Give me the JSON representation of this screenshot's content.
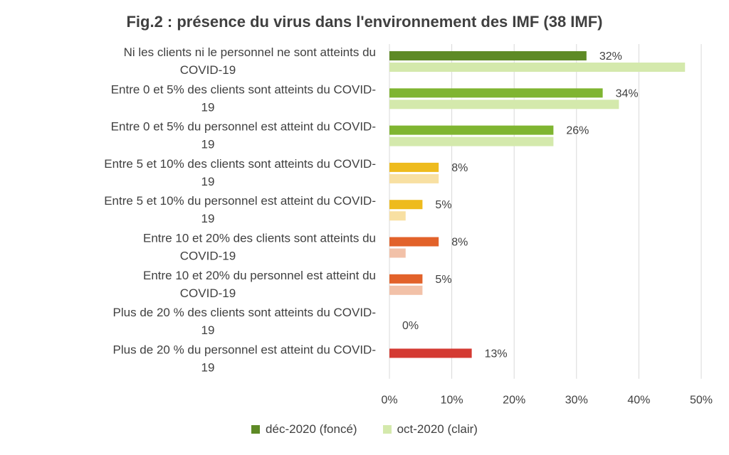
{
  "chart_data": {
    "type": "bar",
    "orientation": "horizontal",
    "title": "Fig.2 : présence du virus dans l'environnement des IMF (38 IMF)",
    "categories": [
      [
        "Ni les clients ni le personnel ne sont atteints du",
        "COVID-19"
      ],
      [
        "Entre 0 et 5% des clients sont atteints du COVID-",
        "19"
      ],
      [
        "Entre 0 et 5% du personnel est atteint du COVID-",
        "19"
      ],
      [
        "Entre 5 et 10% des clients sont atteints du COVID-",
        "19"
      ],
      [
        "Entre 5 et 10% du personnel est atteint du COVID-",
        "19"
      ],
      [
        "Entre 10 et 20% des clients sont atteints du",
        "COVID-19"
      ],
      [
        "Entre 10 et 20% du personnel est atteint du",
        "COVID-19"
      ],
      [
        "Plus de 20 % des clients sont atteints du COVID-",
        "19"
      ],
      [
        "Plus de 20 % du personnel est atteint du COVID-",
        "19"
      ]
    ],
    "series": [
      {
        "name": "déc-2020 (foncé)",
        "values": [
          31.6,
          34.2,
          26.3,
          7.9,
          5.3,
          7.9,
          5.3,
          0,
          13.2
        ],
        "labels": [
          "32%",
          "34%",
          "26%",
          "8%",
          "5%",
          "8%",
          "5%",
          "0%",
          "13%"
        ],
        "colors": [
          "#5e8a26",
          "#7fb531",
          "#7fb531",
          "#eebb1d",
          "#eebb1d",
          "#e2622a",
          "#e2622a",
          "#e2622a",
          "#d43a32"
        ]
      },
      {
        "name": "oct-2020 (clair)",
        "values": [
          47.4,
          36.8,
          26.3,
          7.9,
          2.6,
          2.6,
          5.3,
          0,
          0
        ],
        "colors": [
          "#d4e9ac",
          "#d4e9ac",
          "#d4e9ac",
          "#f8e0a2",
          "#f8e0a2",
          "#f2c1a8",
          "#f2c1a8",
          "#f2c1a8",
          "#f0b8b4"
        ]
      }
    ],
    "xlim": [
      0,
      50
    ],
    "xticks": [
      "0%",
      "10%",
      "20%",
      "30%",
      "40%",
      "50%"
    ],
    "grid": "vertical",
    "legend": {
      "position": "bottom",
      "colors": [
        "#5e8a26",
        "#d4e9ac"
      ]
    }
  }
}
